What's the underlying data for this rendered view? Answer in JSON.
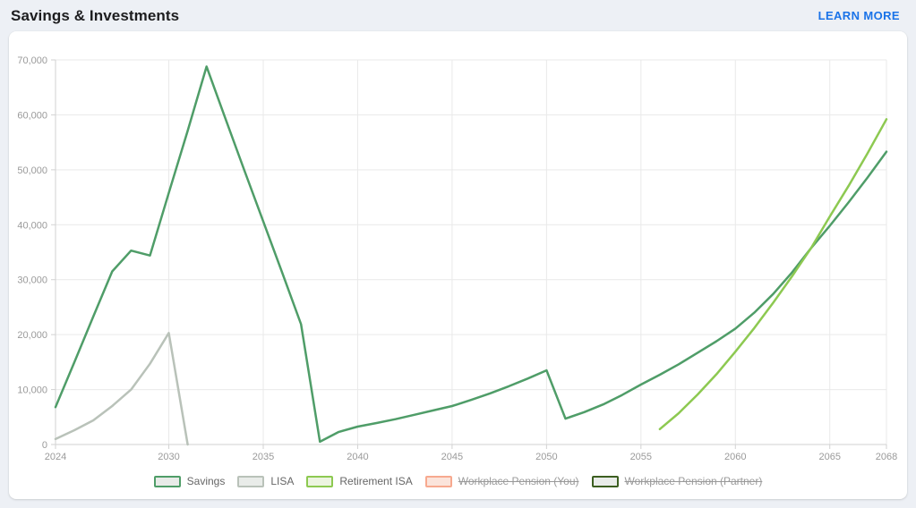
{
  "header": {
    "title": "Savings & Investments",
    "learn_more_label": "LEARN MORE",
    "learn_more_color": "#1a73e8"
  },
  "chart_data": {
    "type": "line",
    "title": "Savings & Investments",
    "xlabel": "",
    "ylabel": "",
    "xlim": [
      2024,
      2068
    ],
    "ylim": [
      0,
      70000
    ],
    "x_ticks": [
      2024,
      2030,
      2035,
      2040,
      2045,
      2050,
      2055,
      2060,
      2065,
      2068
    ],
    "y_ticks": [
      0,
      10000,
      20000,
      30000,
      40000,
      50000,
      60000,
      70000
    ],
    "grid": true,
    "legend_position": "bottom",
    "axis_color": "#d2d2d2",
    "grid_color": "#e9e9e9",
    "tick_label_color": "#9a9a9a",
    "series": [
      {
        "name": "Savings",
        "color": "#4f9d68",
        "swatch_fill": "#e8ebe8",
        "visible": true,
        "x": [
          2024,
          2025,
          2026,
          2027,
          2028,
          2029,
          2030,
          2031,
          2032,
          2033,
          2034,
          2035,
          2036,
          2037,
          2038,
          2039,
          2040,
          2041,
          2042,
          2043,
          2044,
          2045,
          2046,
          2047,
          2048,
          2049,
          2050,
          2051,
          2052,
          2053,
          2054,
          2055,
          2056,
          2057,
          2058,
          2059,
          2060,
          2061,
          2062,
          2063,
          2064,
          2065,
          2066,
          2067,
          2068
        ],
        "values": [
          6800,
          15000,
          23300,
          31500,
          35300,
          34400,
          45800,
          57100,
          68800,
          59300,
          49900,
          40600,
          31300,
          21900,
          500,
          2300,
          3250,
          3900,
          4600,
          5400,
          6200,
          7000,
          8100,
          9300,
          10600,
          12000,
          13500,
          4700,
          5900,
          7300,
          9000,
          10900,
          12700,
          14600,
          16700,
          18800,
          21100,
          24000,
          27400,
          31300,
          35700,
          39800,
          44100,
          48600,
          53300
        ]
      },
      {
        "name": "LISA",
        "color": "#b9c2b9",
        "swatch_fill": "#e9ece9",
        "visible": true,
        "x": [
          2024,
          2025,
          2026,
          2027,
          2028,
          2029,
          2030,
          2031
        ],
        "values": [
          1000,
          2600,
          4400,
          7000,
          10000,
          14700,
          20300,
          0
        ]
      },
      {
        "name": "Retirement ISA",
        "color": "#8dc951",
        "swatch_fill": "#ecf4e0",
        "visible": true,
        "x": [
          2056,
          2057,
          2058,
          2059,
          2060,
          2061,
          2062,
          2063,
          2064,
          2065,
          2066,
          2067,
          2068
        ],
        "values": [
          2800,
          5700,
          9100,
          12800,
          16900,
          21200,
          25800,
          30600,
          35700,
          41500,
          47100,
          53000,
          59200
        ]
      },
      {
        "name": "Workplace Pension (You)",
        "color": "#f7a98f",
        "swatch_fill": "#fbe4db",
        "visible": false,
        "x": [],
        "values": []
      },
      {
        "name": "Workplace Pension (Partner)",
        "color": "#3c5e20",
        "swatch_fill": "#e9ece9",
        "visible": false,
        "x": [],
        "values": []
      }
    ]
  }
}
